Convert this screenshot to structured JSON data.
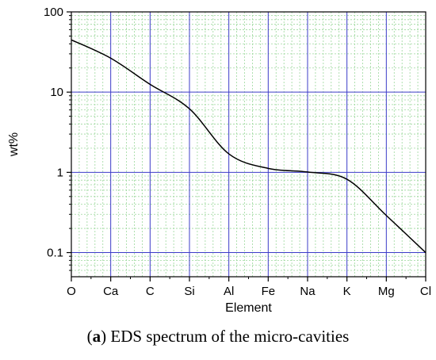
{
  "chart_data": {
    "type": "line",
    "xlabel": "Element",
    "ylabel": "wt%",
    "yscale": "log",
    "ylim": [
      0.05,
      100
    ],
    "categories": [
      "O",
      "Ca",
      "C",
      "Si",
      "Al",
      "Fe",
      "Na",
      "K",
      "Mg",
      "Cl"
    ],
    "yticks": [
      {
        "value": 0.1,
        "label": "0.1"
      },
      {
        "value": 1,
        "label": "1"
      },
      {
        "value": 10,
        "label": "10"
      },
      {
        "value": 100,
        "label": "100"
      }
    ],
    "series": [
      {
        "values": [
          44.8,
          26.5,
          12.5,
          6.2,
          1.7,
          1.12,
          1.01,
          0.82,
          0.29,
          0.1
        ],
        "color": "#000000"
      }
    ],
    "grid": true,
    "major_grid_color": "#3c3cc8",
    "minor_grid_color": "#9cd89c"
  },
  "caption": {
    "label": "a",
    "open": "(",
    "close": ")",
    "text": " EDS spectrum of the micro-cavities"
  }
}
